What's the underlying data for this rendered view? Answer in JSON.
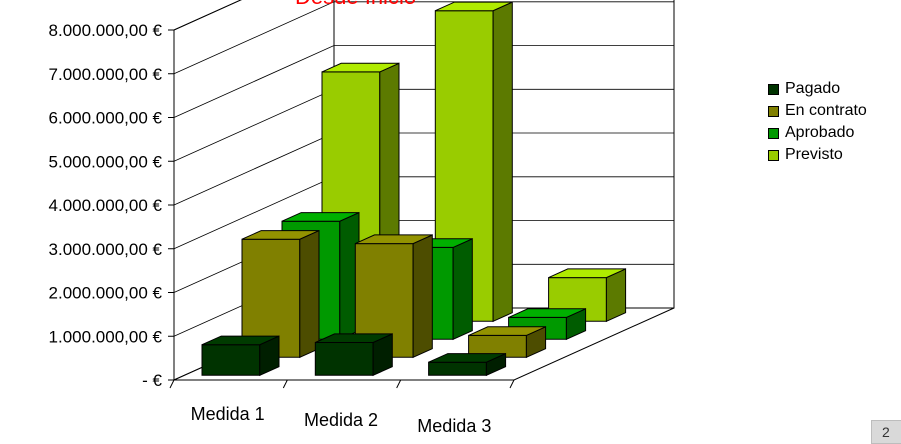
{
  "chart_data": {
    "type": "bar",
    "title": "Desde Inicio",
    "categories": [
      "Medida 1",
      "Medida 2",
      "Medida 3"
    ],
    "series": [
      {
        "name": "Pagado",
        "values": [
          700000,
          750000,
          300000
        ],
        "color": "#003300"
      },
      {
        "name": "En contrato",
        "values": [
          2700000,
          2600000,
          500000
        ],
        "color": "#808000"
      },
      {
        "name": "Aprobado",
        "values": [
          2700000,
          2100000,
          500000
        ],
        "color": "#009900"
      },
      {
        "name": "Previsto",
        "values": [
          5700000,
          7100000,
          1000000
        ],
        "color": "#99cc00"
      }
    ],
    "y_ticks": [
      "8.000.000,00 €",
      "7.000.000,00 €",
      "6.000.000,00 €",
      "5.000.000,00 €",
      "4.000.000,00 €",
      "3.000.000,00 €",
      "2.000.000,00 €",
      "1.000.000,00 €",
      "-      €"
    ],
    "ylim": [
      0,
      8000000
    ],
    "grid": true,
    "legend_position": "right"
  },
  "corner_label": "2"
}
